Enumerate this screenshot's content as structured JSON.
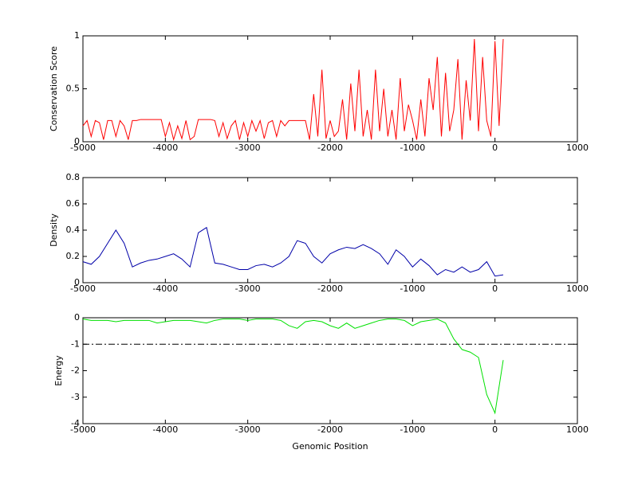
{
  "chart_data": [
    {
      "type": "line",
      "ylabel": "Conservation Score",
      "x": [
        -5000,
        -4950,
        -4900,
        -4850,
        -4800,
        -4750,
        -4700,
        -4650,
        -4600,
        -4550,
        -4500,
        -4450,
        -4400,
        -4350,
        -4300,
        -4250,
        -4200,
        -4150,
        -4100,
        -4050,
        -4000,
        -3950,
        -3900,
        -3850,
        -3800,
        -3750,
        -3700,
        -3650,
        -3600,
        -3550,
        -3500,
        -3450,
        -3400,
        -3350,
        -3300,
        -3250,
        -3200,
        -3150,
        -3100,
        -3050,
        -3000,
        -2950,
        -2900,
        -2850,
        -2800,
        -2750,
        -2700,
        -2650,
        -2600,
        -2550,
        -2500,
        -2450,
        -2400,
        -2350,
        -2300,
        -2250,
        -2200,
        -2150,
        -2100,
        -2050,
        -2000,
        -1950,
        -1900,
        -1850,
        -1800,
        -1750,
        -1700,
        -1650,
        -1600,
        -1550,
        -1500,
        -1450,
        -1400,
        -1350,
        -1300,
        -1250,
        -1200,
        -1150,
        -1100,
        -1050,
        -1000,
        -950,
        -900,
        -850,
        -800,
        -750,
        -700,
        -650,
        -600,
        -550,
        -500,
        -450,
        -400,
        -350,
        -300,
        -250,
        -200,
        -150,
        -100,
        -50,
        0,
        50,
        100
      ],
      "series": [
        {
          "name": null,
          "color": "#ff0000",
          "values": [
            0.15,
            0.2,
            0.05,
            0.2,
            0.18,
            0.02,
            0.2,
            0.2,
            0.05,
            0.2,
            0.15,
            0.02,
            0.2,
            0.2,
            0.21,
            0.21,
            0.21,
            0.21,
            0.21,
            0.21,
            0.05,
            0.18,
            0.02,
            0.15,
            0.03,
            0.2,
            0.02,
            0.05,
            0.21,
            0.21,
            0.21,
            0.21,
            0.2,
            0.05,
            0.18,
            0.03,
            0.15,
            0.2,
            0.02,
            0.18,
            0.05,
            0.2,
            0.1,
            0.2,
            0.03,
            0.18,
            0.2,
            0.05,
            0.2,
            0.15,
            0.2,
            0.2,
            0.2,
            0.2,
            0.2,
            0.02,
            0.45,
            0.05,
            0.68,
            0.03,
            0.2,
            0.05,
            0.1,
            0.4,
            0.02,
            0.55,
            0.1,
            0.68,
            0.05,
            0.3,
            0.02,
            0.68,
            0.1,
            0.5,
            0.05,
            0.3,
            0.02,
            0.6,
            0.1,
            0.35,
            0.2,
            0.02,
            0.4,
            0.05,
            0.6,
            0.3,
            0.8,
            0.05,
            0.65,
            0.1,
            0.3,
            0.78,
            0.02,
            0.58,
            0.2,
            0.97,
            0.1,
            0.8,
            0.2,
            0.05,
            0.95,
            0.15,
            0.97
          ]
        }
      ],
      "xlim": [
        -5000,
        1000
      ],
      "xticks": [
        -5000,
        -4000,
        -3000,
        -2000,
        -1000,
        0,
        1000
      ],
      "ylim": [
        0,
        1
      ],
      "yticks": [
        0,
        0.5,
        1
      ]
    },
    {
      "type": "line",
      "ylabel": "Density",
      "x": [
        -5000,
        -4900,
        -4800,
        -4700,
        -4600,
        -4500,
        -4400,
        -4300,
        -4200,
        -4100,
        -4000,
        -3900,
        -3800,
        -3700,
        -3600,
        -3500,
        -3400,
        -3300,
        -3200,
        -3100,
        -3000,
        -2900,
        -2800,
        -2700,
        -2600,
        -2500,
        -2400,
        -2300,
        -2200,
        -2100,
        -2000,
        -1900,
        -1800,
        -1700,
        -1600,
        -1500,
        -1400,
        -1300,
        -1200,
        -1100,
        -1000,
        -900,
        -800,
        -700,
        -600,
        -500,
        -400,
        -300,
        -200,
        -100,
        0,
        100
      ],
      "series": [
        {
          "name": null,
          "color": "#0000a8",
          "values": [
            0.16,
            0.14,
            0.2,
            0.3,
            0.4,
            0.3,
            0.12,
            0.15,
            0.17,
            0.18,
            0.2,
            0.22,
            0.18,
            0.12,
            0.38,
            0.42,
            0.15,
            0.14,
            0.12,
            0.1,
            0.1,
            0.13,
            0.14,
            0.12,
            0.15,
            0.2,
            0.32,
            0.3,
            0.2,
            0.15,
            0.22,
            0.25,
            0.27,
            0.26,
            0.29,
            0.26,
            0.22,
            0.14,
            0.25,
            0.2,
            0.12,
            0.18,
            0.13,
            0.06,
            0.1,
            0.08,
            0.12,
            0.08,
            0.1,
            0.16,
            0.05,
            0.06
          ]
        }
      ],
      "xlim": [
        -5000,
        1000
      ],
      "xticks": [
        -5000,
        -4000,
        -3000,
        -2000,
        -1000,
        0,
        1000
      ],
      "ylim": [
        0,
        0.8
      ],
      "yticks": [
        0,
        0.2,
        0.4,
        0.6,
        0.8
      ]
    },
    {
      "type": "line",
      "ylabel": "Energy",
      "xlabel": "Genomic Position",
      "x": [
        -5000,
        -4900,
        -4800,
        -4700,
        -4600,
        -4500,
        -4400,
        -4300,
        -4200,
        -4100,
        -4000,
        -3900,
        -3800,
        -3700,
        -3600,
        -3500,
        -3400,
        -3300,
        -3200,
        -3100,
        -3000,
        -2900,
        -2800,
        -2700,
        -2600,
        -2500,
        -2400,
        -2300,
        -2200,
        -2100,
        -2000,
        -1900,
        -1800,
        -1700,
        -1600,
        -1500,
        -1400,
        -1300,
        -1200,
        -1100,
        -1000,
        -900,
        -800,
        -700,
        -600,
        -500,
        -400,
        -300,
        -200,
        -100,
        0,
        100
      ],
      "series": [
        {
          "name": null,
          "color": "#00e000",
          "values": [
            -0.05,
            -0.1,
            -0.1,
            -0.1,
            -0.15,
            -0.1,
            -0.1,
            -0.1,
            -0.1,
            -0.2,
            -0.15,
            -0.1,
            -0.1,
            -0.1,
            -0.15,
            -0.2,
            -0.1,
            -0.05,
            -0.05,
            -0.05,
            -0.1,
            -0.05,
            -0.05,
            -0.05,
            -0.1,
            -0.3,
            -0.4,
            -0.15,
            -0.1,
            -0.15,
            -0.3,
            -0.4,
            -0.2,
            -0.4,
            -0.3,
            -0.2,
            -0.1,
            -0.05,
            -0.05,
            -0.1,
            -0.3,
            -0.15,
            -0.1,
            -0.05,
            -0.2,
            -0.8,
            -1.2,
            -1.3,
            -1.5,
            -2.9,
            -3.6,
            -1.6
          ]
        }
      ],
      "reference_line": -1,
      "xlim": [
        -5000,
        1000
      ],
      "xticks": [
        -5000,
        -4000,
        -3000,
        -2000,
        -1000,
        0,
        1000
      ],
      "ylim": [
        -4,
        0
      ],
      "yticks": [
        -4,
        -3,
        -2,
        -1,
        0
      ]
    }
  ]
}
